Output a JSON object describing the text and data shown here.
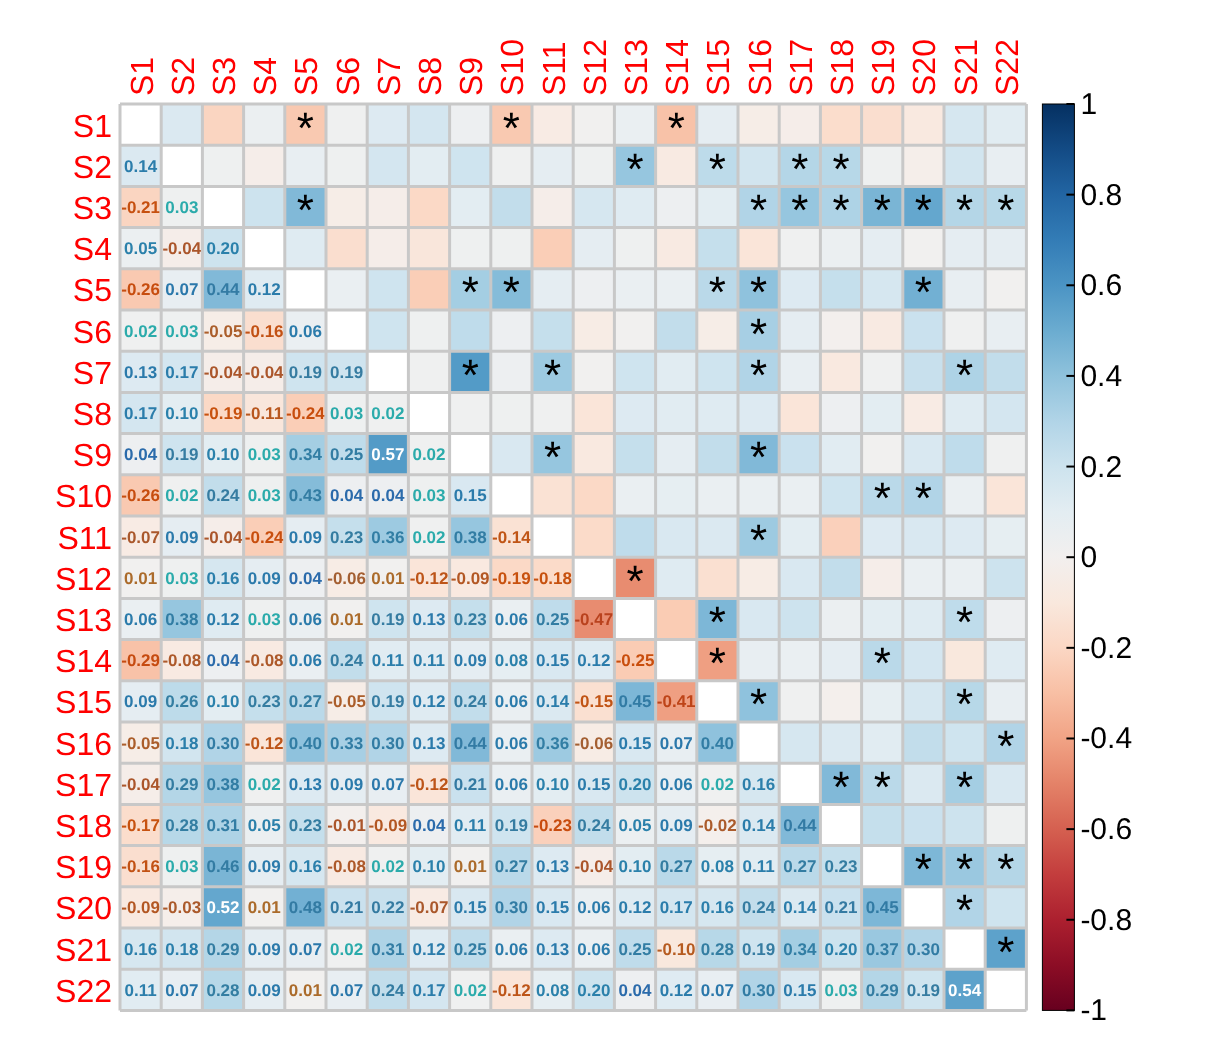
{
  "chart_data": {
    "type": "heatmap",
    "categories": [
      "S1",
      "S2",
      "S3",
      "S4",
      "S5",
      "S6",
      "S7",
      "S8",
      "S9",
      "S10",
      "S11",
      "S12",
      "S13",
      "S14",
      "S15",
      "S16",
      "S17",
      "S18",
      "S19",
      "S20",
      "S21",
      "S22"
    ],
    "y_categories": [
      "S1",
      "S2",
      "S3",
      "S4",
      "S5",
      "S6",
      "S7",
      "S8",
      "S9",
      "S10",
      "S11",
      "S12",
      "S13",
      "S14",
      "S15",
      "S16",
      "S17",
      "S18",
      "S19",
      "S20",
      "S21",
      "S22"
    ],
    "cells": [
      [
        null,
        0.14,
        -0.21,
        0.05,
        -0.26,
        0.02,
        0.13,
        0.17,
        0.04,
        -0.26,
        -0.07,
        0.01,
        0.06,
        -0.29,
        0.09,
        -0.05,
        -0.04,
        -0.17,
        -0.16,
        -0.09,
        0.16,
        0.11
      ],
      [
        0.14,
        null,
        0.03,
        -0.04,
        0.07,
        0.03,
        0.17,
        0.1,
        0.19,
        0.02,
        0.09,
        0.03,
        0.38,
        -0.08,
        0.26,
        0.18,
        0.29,
        0.28,
        0.03,
        -0.03,
        0.18,
        0.07
      ],
      [
        -0.21,
        0.03,
        null,
        0.2,
        0.44,
        -0.05,
        -0.04,
        -0.19,
        0.1,
        0.24,
        -0.04,
        0.16,
        0.12,
        0.04,
        0.1,
        0.3,
        0.38,
        0.31,
        0.46,
        0.52,
        0.29,
        0.28
      ],
      [
        0.05,
        -0.04,
        0.2,
        null,
        0.12,
        -0.16,
        -0.04,
        -0.11,
        0.03,
        0.03,
        -0.24,
        0.09,
        0.03,
        -0.08,
        0.23,
        -0.12,
        0.02,
        0.05,
        0.09,
        0.01,
        0.09,
        0.09
      ],
      [
        -0.26,
        0.07,
        0.44,
        0.12,
        null,
        0.06,
        0.19,
        -0.24,
        0.34,
        0.43,
        0.09,
        0.04,
        0.06,
        0.06,
        0.27,
        0.4,
        0.13,
        0.23,
        0.16,
        0.48,
        0.07,
        0.01
      ],
      [
        0.02,
        0.03,
        -0.05,
        -0.16,
        0.06,
        null,
        0.19,
        0.03,
        0.25,
        0.04,
        0.23,
        -0.06,
        0.01,
        0.24,
        -0.05,
        0.33,
        0.09,
        -0.01,
        -0.08,
        0.21,
        0.02,
        0.07
      ],
      [
        0.13,
        0.17,
        -0.04,
        -0.04,
        0.19,
        0.19,
        null,
        0.02,
        0.57,
        0.04,
        0.36,
        0.01,
        0.19,
        0.11,
        0.19,
        0.3,
        0.07,
        -0.09,
        0.02,
        0.22,
        0.31,
        0.24
      ],
      [
        0.17,
        0.1,
        -0.19,
        -0.11,
        -0.24,
        0.03,
        0.02,
        null,
        0.02,
        0.03,
        0.02,
        -0.12,
        0.13,
        0.11,
        0.12,
        0.13,
        -0.12,
        0.04,
        0.1,
        -0.07,
        0.12,
        0.17
      ],
      [
        0.04,
        0.19,
        0.1,
        0.03,
        0.34,
        0.25,
        0.57,
        0.02,
        null,
        0.15,
        0.38,
        -0.09,
        0.23,
        0.09,
        0.24,
        0.44,
        0.21,
        0.11,
        0.01,
        0.15,
        0.25,
        0.02
      ],
      [
        -0.26,
        0.02,
        0.24,
        0.03,
        0.43,
        0.04,
        0.04,
        0.03,
        0.15,
        null,
        -0.14,
        -0.19,
        0.06,
        0.08,
        0.06,
        0.06,
        0.06,
        0.19,
        0.27,
        0.3,
        0.06,
        -0.12
      ],
      [
        -0.07,
        0.09,
        -0.04,
        -0.24,
        0.09,
        0.23,
        0.36,
        0.02,
        0.38,
        -0.14,
        null,
        -0.18,
        0.25,
        0.15,
        0.14,
        0.36,
        0.1,
        -0.23,
        0.13,
        0.15,
        0.13,
        0.08
      ],
      [
        0.01,
        0.03,
        0.16,
        0.09,
        0.04,
        -0.06,
        0.01,
        -0.12,
        -0.09,
        -0.19,
        -0.18,
        null,
        -0.47,
        0.12,
        -0.15,
        -0.06,
        0.15,
        0.24,
        -0.04,
        0.06,
        0.06,
        0.2
      ],
      [
        0.06,
        0.38,
        0.12,
        0.03,
        0.06,
        0.01,
        0.19,
        0.13,
        0.23,
        0.06,
        0.25,
        -0.47,
        null,
        -0.25,
        0.45,
        0.15,
        0.2,
        0.05,
        0.1,
        0.12,
        0.25,
        0.04
      ],
      [
        -0.29,
        -0.08,
        0.04,
        -0.08,
        0.06,
        0.24,
        0.11,
        0.11,
        0.09,
        0.08,
        0.15,
        0.12,
        -0.25,
        null,
        -0.41,
        0.07,
        0.06,
        0.09,
        0.27,
        0.17,
        -0.1,
        0.12
      ],
      [
        0.09,
        0.26,
        0.1,
        0.23,
        0.27,
        -0.05,
        0.19,
        0.12,
        0.24,
        0.06,
        0.14,
        -0.15,
        0.45,
        -0.41,
        null,
        0.4,
        0.02,
        -0.02,
        0.08,
        0.16,
        0.28,
        0.07
      ],
      [
        -0.05,
        0.18,
        0.3,
        -0.12,
        0.4,
        0.33,
        0.3,
        0.13,
        0.44,
        0.06,
        0.36,
        -0.06,
        0.15,
        0.07,
        0.4,
        null,
        0.16,
        0.14,
        0.11,
        0.24,
        0.19,
        0.3
      ],
      [
        -0.04,
        0.29,
        0.38,
        0.02,
        0.13,
        0.09,
        0.07,
        -0.12,
        0.21,
        0.06,
        0.1,
        0.15,
        0.2,
        0.06,
        0.02,
        0.16,
        null,
        0.44,
        0.27,
        0.14,
        0.34,
        0.15
      ],
      [
        -0.17,
        0.28,
        0.31,
        0.05,
        0.23,
        -0.01,
        -0.09,
        0.04,
        0.11,
        0.19,
        -0.23,
        0.24,
        0.05,
        0.09,
        -0.02,
        0.14,
        0.44,
        null,
        0.23,
        0.21,
        0.2,
        0.03
      ],
      [
        -0.16,
        0.03,
        0.46,
        0.09,
        0.16,
        -0.08,
        0.02,
        0.1,
        0.01,
        0.27,
        0.13,
        -0.04,
        0.1,
        0.27,
        0.08,
        0.11,
        0.27,
        0.23,
        null,
        0.45,
        0.37,
        0.29
      ],
      [
        -0.09,
        -0.03,
        0.52,
        0.01,
        0.48,
        0.21,
        0.22,
        -0.07,
        0.15,
        0.3,
        0.15,
        0.06,
        0.12,
        0.17,
        0.16,
        0.24,
        0.14,
        0.21,
        0.45,
        null,
        0.3,
        0.19
      ],
      [
        0.16,
        0.18,
        0.29,
        0.09,
        0.07,
        0.02,
        0.31,
        0.12,
        0.25,
        0.06,
        0.13,
        0.06,
        0.25,
        -0.1,
        0.28,
        0.19,
        0.34,
        0.2,
        0.37,
        0.3,
        null,
        0.54
      ],
      [
        0.11,
        0.07,
        0.28,
        0.09,
        0.01,
        0.07,
        0.24,
        0.17,
        0.02,
        -0.12,
        0.08,
        0.2,
        0.04,
        0.12,
        0.07,
        0.3,
        0.15,
        0.03,
        0.29,
        0.19,
        0.54,
        null
      ]
    ],
    "cell_labels": [
      [
        null,
        null,
        null,
        null,
        "*",
        null,
        null,
        null,
        null,
        "*",
        null,
        null,
        null,
        "*",
        null,
        null,
        null,
        null,
        null,
        null,
        null,
        null
      ],
      [
        "0.14",
        null,
        null,
        null,
        null,
        null,
        null,
        null,
        null,
        null,
        null,
        null,
        "*",
        null,
        "*",
        null,
        "*",
        "*",
        null,
        null,
        null,
        null
      ],
      [
        "-0.21",
        "0.03",
        null,
        null,
        "*",
        null,
        null,
        null,
        null,
        null,
        null,
        null,
        null,
        null,
        null,
        "*",
        "*",
        "*",
        "*",
        "*",
        "*",
        "*"
      ],
      [
        "0.05",
        "-0.04",
        "0.20",
        null,
        null,
        null,
        null,
        null,
        null,
        null,
        null,
        null,
        null,
        null,
        null,
        null,
        null,
        null,
        null,
        null,
        null,
        null
      ],
      [
        "-0.26",
        "0.07",
        "0.44",
        "0.12",
        null,
        null,
        null,
        null,
        "*",
        "*",
        null,
        null,
        null,
        null,
        "*",
        "*",
        null,
        null,
        null,
        "*",
        null,
        null
      ],
      [
        "0.02",
        "0.03",
        "-0.05",
        "-0.16",
        "0.06",
        null,
        null,
        null,
        null,
        null,
        null,
        null,
        null,
        null,
        null,
        "*",
        null,
        null,
        null,
        null,
        null,
        null
      ],
      [
        "0.13",
        "0.17",
        "-0.04",
        "-0.04",
        "0.19",
        "0.19",
        null,
        null,
        "*",
        null,
        "*",
        null,
        null,
        null,
        null,
        "*",
        null,
        null,
        null,
        null,
        "*",
        null
      ],
      [
        "0.17",
        "0.10",
        "-0.19",
        "-0.11",
        "-0.24",
        "0.03",
        "0.02",
        null,
        null,
        null,
        null,
        null,
        null,
        null,
        null,
        null,
        null,
        null,
        null,
        null,
        null,
        null
      ],
      [
        "0.04",
        "0.19",
        "0.10",
        "0.03",
        "0.34",
        "0.25",
        "0.57",
        "0.02",
        null,
        null,
        "*",
        null,
        null,
        null,
        null,
        "*",
        null,
        null,
        null,
        null,
        null,
        null
      ],
      [
        "-0.26",
        "0.02",
        "0.24",
        "0.03",
        "0.43",
        "0.04",
        "0.04",
        "0.03",
        "0.15",
        null,
        null,
        null,
        null,
        null,
        null,
        null,
        null,
        null,
        "*",
        "*",
        null,
        null
      ],
      [
        "-0.07",
        "0.09",
        "-0.04",
        "-0.24",
        "0.09",
        "0.23",
        "0.36",
        "0.02",
        "0.38",
        "-0.14",
        null,
        null,
        null,
        null,
        null,
        "*",
        null,
        null,
        null,
        null,
        null,
        null
      ],
      [
        "0.01",
        "0.03",
        "0.16",
        "0.09",
        "0.04",
        "-0.06",
        "0.01",
        "-0.12",
        "-0.09",
        "-0.19",
        "-0.18",
        null,
        "*",
        null,
        null,
        null,
        null,
        null,
        null,
        null,
        null,
        null
      ],
      [
        "0.06",
        "0.38",
        "0.12",
        "0.03",
        "0.06",
        "0.01",
        "0.19",
        "0.13",
        "0.23",
        "0.06",
        "0.25",
        "-0.47",
        null,
        null,
        "*",
        null,
        null,
        null,
        null,
        null,
        "*",
        null
      ],
      [
        "-0.29",
        "-0.08",
        "0.04",
        "-0.08",
        "0.06",
        "0.24",
        "0.11",
        "0.11",
        "0.09",
        "0.08",
        "0.15",
        "0.12",
        "-0.25",
        null,
        "*",
        null,
        null,
        null,
        "*",
        null,
        null,
        null
      ],
      [
        "0.09",
        "0.26",
        "0.10",
        "0.23",
        "0.27",
        "-0.05",
        "0.19",
        "0.12",
        "0.24",
        "0.06",
        "0.14",
        "-0.15",
        "0.45",
        "-0.41",
        null,
        "*",
        null,
        null,
        null,
        null,
        "*",
        null
      ],
      [
        "-0.05",
        "0.18",
        "0.30",
        "-0.12",
        "0.40",
        "0.33",
        "0.30",
        "0.13",
        "0.44",
        "0.06",
        "0.36",
        "-0.06",
        "0.15",
        "0.07",
        "0.40",
        null,
        null,
        null,
        null,
        null,
        null,
        "*"
      ],
      [
        "-0.04",
        "0.29",
        "0.38",
        "0.02",
        "0.13",
        "0.09",
        "0.07",
        "-0.12",
        "0.21",
        "0.06",
        "0.10",
        "0.15",
        "0.20",
        "0.06",
        "0.02",
        "0.16",
        null,
        "*",
        "*",
        null,
        "*",
        null
      ],
      [
        "-0.17",
        "0.28",
        "0.31",
        "0.05",
        "0.23",
        "-0.01",
        "-0.09",
        "0.04",
        "0.11",
        "0.19",
        "-0.23",
        "0.24",
        "0.05",
        "0.09",
        "-0.02",
        "0.14",
        "0.44",
        null,
        null,
        null,
        null,
        null
      ],
      [
        "-0.16",
        "0.03",
        "0.46",
        "0.09",
        "0.16",
        "-0.08",
        "0.02",
        "0.10",
        "0.01",
        "0.27",
        "0.13",
        "-0.04",
        "0.10",
        "0.27",
        "0.08",
        "0.11",
        "0.27",
        "0.23",
        null,
        "*",
        "*",
        "*"
      ],
      [
        "-0.09",
        "-0.03",
        "0.52",
        "0.01",
        "0.48",
        "0.21",
        "0.22",
        "-0.07",
        "0.15",
        "0.30",
        "0.15",
        "0.06",
        "0.12",
        "0.17",
        "0.16",
        "0.24",
        "0.14",
        "0.21",
        "0.45",
        null,
        "*",
        null
      ],
      [
        "0.16",
        "0.18",
        "0.29",
        "0.09",
        "0.07",
        "0.02",
        "0.31",
        "0.12",
        "0.25",
        "0.06",
        "0.13",
        "0.06",
        "0.25",
        "-0.10",
        "0.28",
        "0.19",
        "0.34",
        "0.20",
        "0.37",
        "0.30",
        null,
        "*"
      ],
      [
        "0.11",
        "0.07",
        "0.28",
        "0.09",
        "0.01",
        "0.07",
        "0.24",
        "0.17",
        "0.02",
        "-0.12",
        "0.08",
        "0.20",
        "0.04",
        "0.12",
        "0.07",
        "0.30",
        "0.15",
        "0.03",
        "0.29",
        "0.19",
        "0.54",
        null
      ]
    ],
    "clim": [
      -1,
      1
    ],
    "cticks": [
      1,
      0.8,
      0.6,
      0.4,
      0.2,
      0,
      -0.2,
      -0.4,
      -0.6,
      -0.8,
      -1
    ]
  }
}
